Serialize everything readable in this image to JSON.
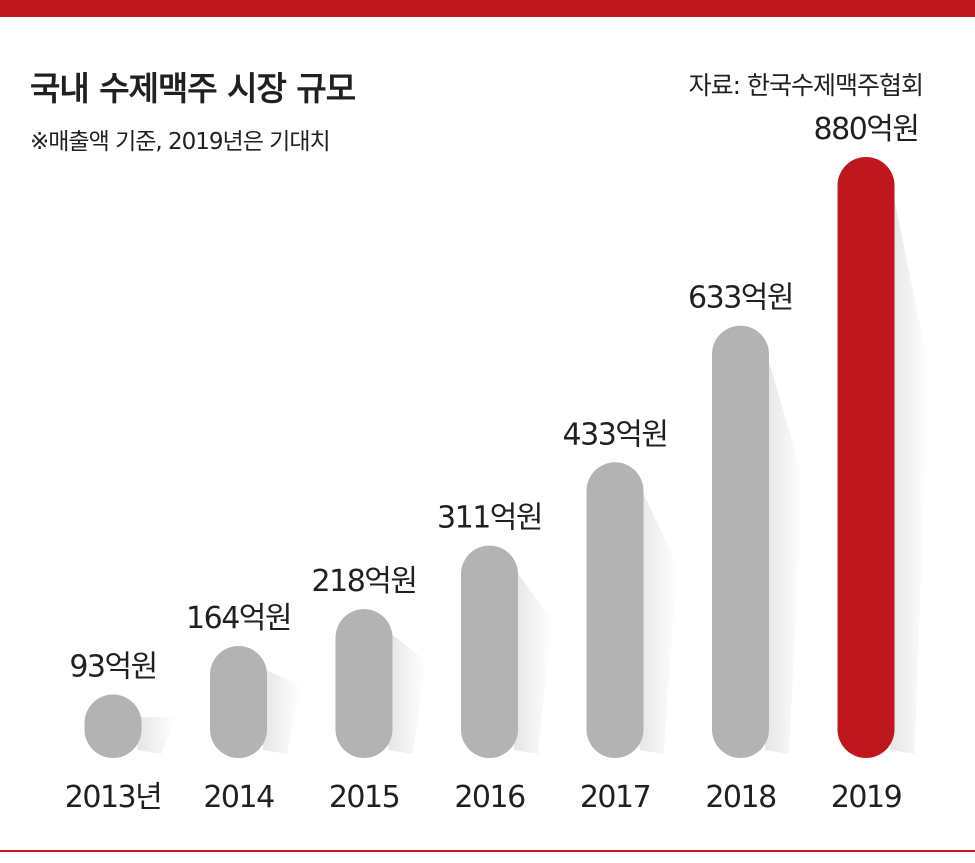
{
  "colors": {
    "accent": "#c0171e",
    "bar": "#b3b3b3",
    "highlight_bar": "#c0171e",
    "text": "#231f20"
  },
  "header": {
    "title": "국내 수제맥주 시장 규모",
    "subtitle": "※매출액 기준, 2019년은 기대치",
    "source": "자료: 한국수제맥주협회"
  },
  "chart_data": {
    "type": "bar",
    "title": "국내 수제맥주 시장 규모",
    "subtitle": "※매출액 기준, 2019년은 기대치",
    "xlabel": "",
    "ylabel": "",
    "categories": [
      "2013년",
      "2014",
      "2015",
      "2016",
      "2017",
      "2018",
      "2019"
    ],
    "values": [
      93,
      164,
      218,
      311,
      433,
      633,
      880
    ],
    "data_labels": [
      "93억원",
      "164억원",
      "218억원",
      "311억원",
      "433억원",
      "633억원",
      "880억원"
    ],
    "highlight_category": "2019",
    "unit": "억원",
    "ylim": [
      0,
      880
    ],
    "grid": false,
    "legend": "none"
  }
}
